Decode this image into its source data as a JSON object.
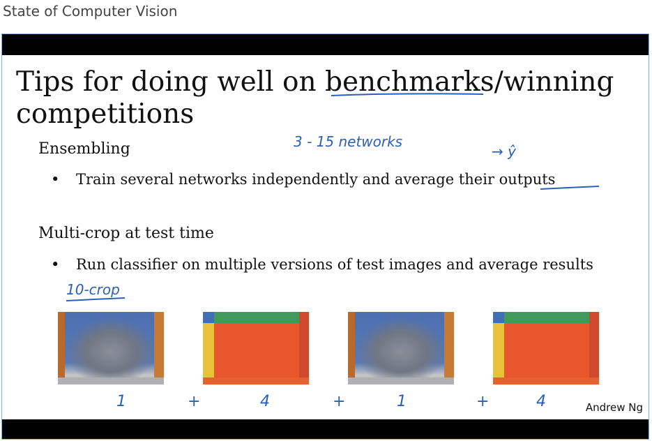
{
  "header": {
    "title": "State of Computer Vision"
  },
  "slide": {
    "title": "Tips for doing well on benchmarks/winning competitions",
    "sections": [
      {
        "heading": "Ensembling",
        "bullet": "Train several networks independently and average their outputs"
      },
      {
        "heading": "Multi-crop at test time",
        "bullet": "Run classifier on multiple versions of test images and average results"
      }
    ],
    "bullet_marker": "•",
    "author": "Andrew Ng"
  },
  "annotations": {
    "networks_note": "3 - 15  networks",
    "y_hat_note": "→ ŷ",
    "crop_note": "10-crop",
    "sum_terms": [
      "1",
      "+",
      "4",
      "+",
      "1",
      "+",
      "4"
    ]
  },
  "images": [
    {
      "icon": "cat-photo-icon"
    },
    {
      "icon": "crop-regions-icon"
    },
    {
      "icon": "cat-photo-icon"
    },
    {
      "icon": "crop-regions-icon"
    }
  ],
  "colors": {
    "ink": "#2a5fb8",
    "frame_border": "#8ab0d8",
    "bar": "#000000"
  }
}
